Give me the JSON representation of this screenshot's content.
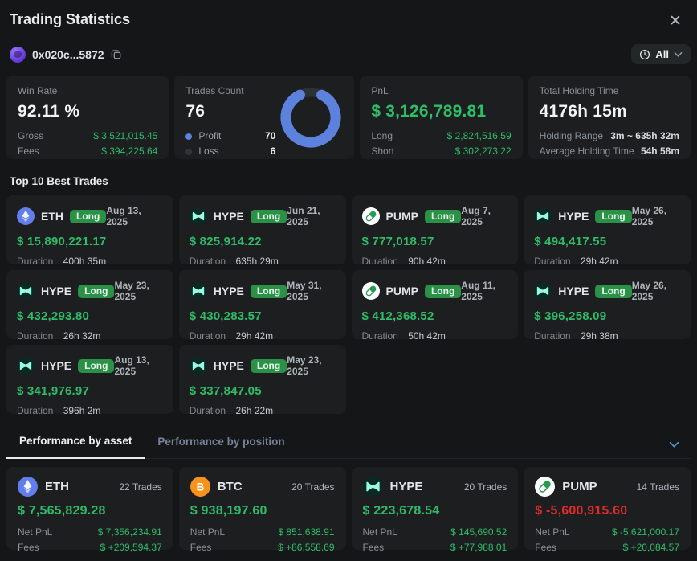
{
  "header": {
    "title": "Trading Statistics",
    "close": "✕"
  },
  "account": {
    "address": "0x020c...5872"
  },
  "time_filter": {
    "label": "All"
  },
  "stats": {
    "win_rate": {
      "label": "Win Rate",
      "value": "92.11 %",
      "rows": [
        {
          "label": "Gross",
          "value": "$ 3,521,015.45"
        },
        {
          "label": "Fees",
          "value": "$ 394,225.64"
        }
      ]
    },
    "trades_count": {
      "label": "Trades Count",
      "value": "76",
      "legend": [
        {
          "label": "Profit",
          "value": "70"
        },
        {
          "label": "Loss",
          "value": "6"
        }
      ],
      "colors": {
        "profit": "#5c82dd",
        "loss": "#2f3437"
      }
    },
    "pnl": {
      "label": "PnL",
      "value": "$ 3,126,789.81",
      "rows": [
        {
          "label": "Long",
          "value": "$ 2,824,516.59"
        },
        {
          "label": "Short",
          "value": "$ 302,273.22"
        }
      ]
    },
    "holding": {
      "label": "Total Holding Time",
      "value": "4176h 15m",
      "rows": [
        {
          "label": "Holding Range",
          "value": "3m ~ 635h 32m"
        },
        {
          "label": "Average Holding Time",
          "value": "54h 58m"
        }
      ]
    }
  },
  "best_trades": {
    "title": "Top 10 Best Trades",
    "duration_label": "Duration",
    "items": [
      {
        "coin": "ETH",
        "side": "Long",
        "date": "Aug 13, 2025",
        "pnl": "$ 15,890,221.17",
        "duration": "400h 35m"
      },
      {
        "coin": "HYPE",
        "side": "Long",
        "date": "Jun 21, 2025",
        "pnl": "$ 825,914.22",
        "duration": "635h 29m"
      },
      {
        "coin": "PUMP",
        "side": "Long",
        "date": "Aug 7, 2025",
        "pnl": "$ 777,018.57",
        "duration": "90h 42m"
      },
      {
        "coin": "HYPE",
        "side": "Long",
        "date": "May 26, 2025",
        "pnl": "$ 494,417.55",
        "duration": "29h 42m"
      },
      {
        "coin": "HYPE",
        "side": "Long",
        "date": "May 23, 2025",
        "pnl": "$ 432,293.80",
        "duration": "26h 32m"
      },
      {
        "coin": "HYPE",
        "side": "Long",
        "date": "May 31, 2025",
        "pnl": "$ 430,283.57",
        "duration": "29h 42m"
      },
      {
        "coin": "PUMP",
        "side": "Long",
        "date": "Aug 11, 2025",
        "pnl": "$ 412,368.52",
        "duration": "50h 42m"
      },
      {
        "coin": "HYPE",
        "side": "Long",
        "date": "May 26, 2025",
        "pnl": "$ 396,258.09",
        "duration": "29h 38m"
      },
      {
        "coin": "HYPE",
        "side": "Long",
        "date": "Aug 13, 2025",
        "pnl": "$ 341,976.97",
        "duration": "396h 2m"
      },
      {
        "coin": "HYPE",
        "side": "Long",
        "date": "May 23, 2025",
        "pnl": "$ 337,847.05",
        "duration": "26h 22m"
      }
    ]
  },
  "tabs": {
    "asset": "Performance by asset",
    "position": "Performance by position"
  },
  "assets": {
    "net_pnl_label": "Net PnL",
    "fees_label": "Fees",
    "items": [
      {
        "coin": "ETH",
        "trades": "22 Trades",
        "pnl": "$ 7,565,829.28",
        "pnl_class": "pos",
        "net_pnl": "$ 7,356,234.91",
        "net_class": "pos",
        "fees": "$ +209,594.37",
        "fees_class": "pos"
      },
      {
        "coin": "BTC",
        "trades": "20 Trades",
        "pnl": "$ 938,197.60",
        "pnl_class": "pos",
        "net_pnl": "$ 851,638.91",
        "net_class": "pos",
        "fees": "$ +86,558.69",
        "fees_class": "pos"
      },
      {
        "coin": "HYPE",
        "trades": "20 Trades",
        "pnl": "$ 223,678.54",
        "pnl_class": "pos",
        "net_pnl": "$ 145,690.52",
        "net_class": "pos",
        "fees": "$ +77,988.01",
        "fees_class": "pos"
      },
      {
        "coin": "PUMP",
        "trades": "14 Trades",
        "pnl": "$ -5,600,915.60",
        "pnl_class": "neg",
        "net_pnl": "$ -5,621,000.17",
        "net_class": "neg",
        "fees": "$ +20,084.57",
        "fees_class": "pos"
      }
    ]
  }
}
